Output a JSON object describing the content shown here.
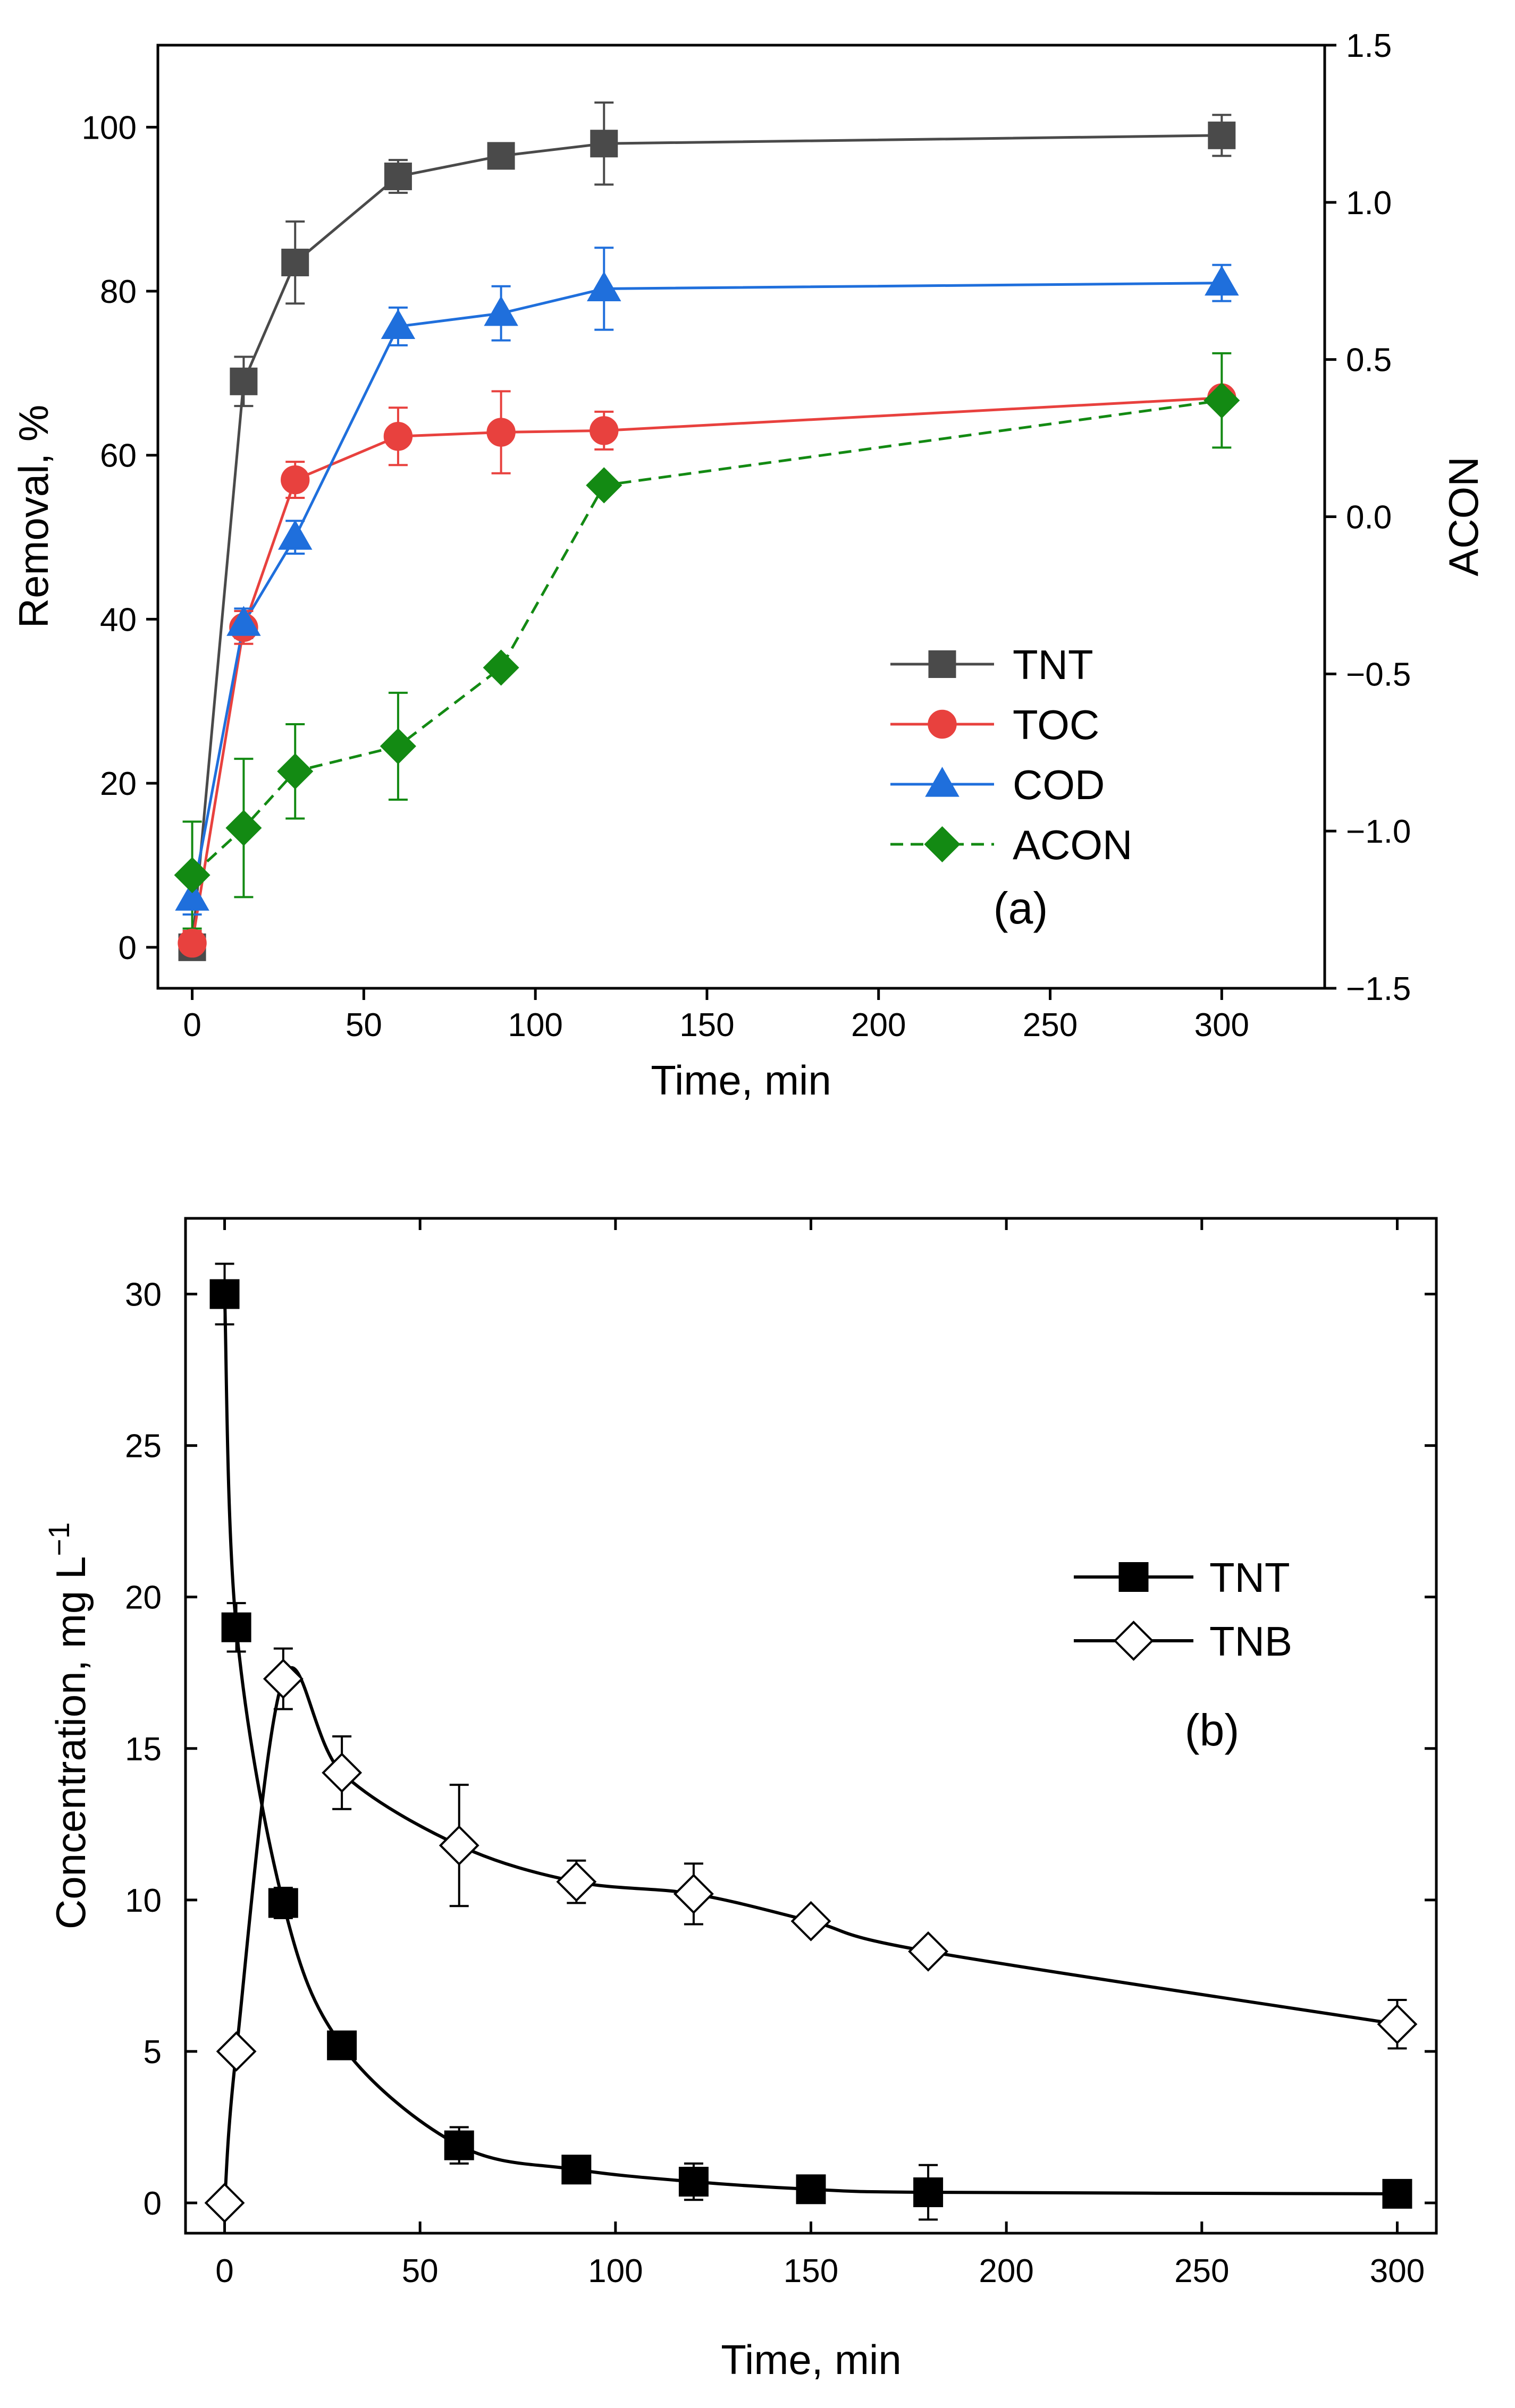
{
  "chart_data": [
    {
      "panel_label": "(a)",
      "type": "line",
      "xlabel": "Time, min",
      "ylabel": "Removal, %",
      "y2label": "ACON",
      "xlim": [
        -10,
        330
      ],
      "ylim": [
        -5,
        110
      ],
      "y2lim": [
        -1.5,
        1.5
      ],
      "xticks": [
        0,
        50,
        100,
        150,
        200,
        250,
        300
      ],
      "yticks": [
        0,
        20,
        40,
        60,
        80,
        100
      ],
      "y2ticks": [
        1.5,
        1.0,
        0.5,
        0.0,
        -0.5,
        -1.0,
        -1.5
      ],
      "y2tick_labels": [
        "1.5",
        "1.0",
        "0.5",
        "0.0",
        "−0.5",
        "−1.0",
        "−1.5"
      ],
      "legend_position": "bottom-right",
      "series": [
        {
          "name": "TNT",
          "color": "#4a4a4a",
          "marker": "square",
          "dashed": false,
          "axis": "left",
          "x": [
            0,
            15,
            30,
            60,
            90,
            120,
            300
          ],
          "y": [
            0,
            69,
            83.5,
            94,
            96.5,
            98,
            99
          ],
          "err": [
            1.5,
            3,
            5,
            2,
            1,
            5,
            2.5
          ]
        },
        {
          "name": "TOC",
          "color": "#e8413e",
          "marker": "circle",
          "dashed": false,
          "axis": "left",
          "x": [
            0,
            15,
            30,
            60,
            90,
            120,
            300
          ],
          "y": [
            0.5,
            39,
            57,
            62.3,
            62.8,
            63,
            67
          ],
          "err": [
            1.5,
            2,
            2.2,
            3.5,
            5,
            2.3,
            1.2
          ]
        },
        {
          "name": "COD",
          "color": "#1f6fdc",
          "marker": "triangle",
          "dashed": false,
          "axis": "left",
          "x": [
            0,
            15,
            30,
            60,
            90,
            120,
            300
          ],
          "y": [
            6,
            39.5,
            50,
            75.7,
            77.3,
            80.3,
            81
          ],
          "err": [
            2,
            1.8,
            2,
            2.3,
            3.3,
            5,
            2.2
          ]
        },
        {
          "name": "ACON",
          "color": "#138a13",
          "marker": "diamond",
          "dashed": true,
          "axis": "right",
          "x": [
            0,
            15,
            30,
            60,
            90,
            120,
            300
          ],
          "y": [
            -1.14,
            -0.99,
            -0.81,
            -0.73,
            -0.48,
            0.1,
            0.37
          ],
          "err": [
            0.17,
            0.22,
            0.15,
            0.17,
            0.02,
            0.02,
            0.15
          ]
        }
      ]
    },
    {
      "panel_label": "(b)",
      "type": "line",
      "xlabel": "Time, min",
      "ylabel": "Concentration, mg L",
      "ylabel_superscript": "−1",
      "xlim": [
        -10,
        310
      ],
      "ylim": [
        -1,
        32.5
      ],
      "xticks": [
        0,
        50,
        100,
        150,
        200,
        250,
        300
      ],
      "yticks": [
        0,
        5,
        10,
        15,
        20,
        25,
        30
      ],
      "legend_position": "right",
      "series": [
        {
          "name": "TNT",
          "color": "#000000",
          "marker": "filled-square",
          "x": [
            0,
            3,
            15,
            30,
            60,
            90,
            120,
            150,
            180,
            300
          ],
          "y": [
            30,
            19,
            9.9,
            5.2,
            1.9,
            1.1,
            0.7,
            0.45,
            0.35,
            0.3
          ],
          "err": [
            1,
            0.8,
            0.5,
            0.3,
            0.6,
            0.2,
            0.6,
            0.1,
            0.9,
            0.3
          ]
        },
        {
          "name": "TNB",
          "color": "#000000",
          "marker": "open-diamond",
          "x": [
            0,
            3,
            15,
            30,
            60,
            90,
            120,
            150,
            180,
            300
          ],
          "y": [
            0,
            5,
            17.3,
            14.2,
            11.8,
            10.6,
            10.2,
            9.3,
            8.3,
            5.9
          ],
          "err": [
            0,
            0.2,
            1,
            1.2,
            2,
            0.7,
            1,
            0.3,
            0.2,
            0.8
          ]
        }
      ]
    }
  ]
}
